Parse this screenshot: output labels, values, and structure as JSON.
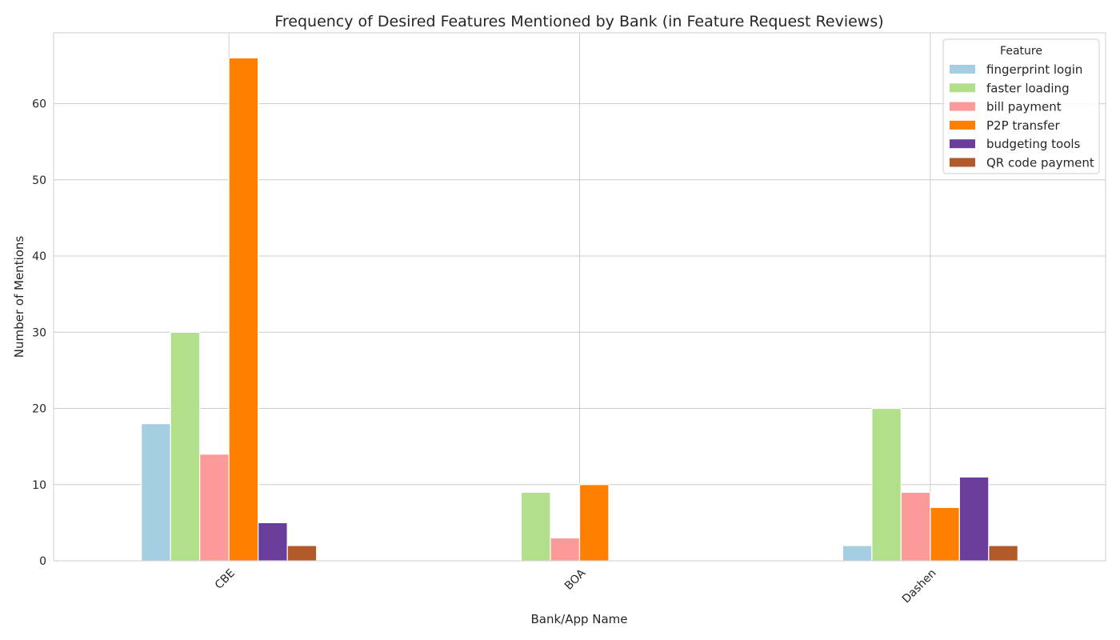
{
  "chart_data": {
    "type": "bar",
    "title": "Frequency of Desired Features Mentioned by Bank (in Feature Request Reviews)",
    "xlabel": "Bank/App Name",
    "ylabel": "Number of Mentions",
    "categories": [
      "CBE",
      "BOA",
      "Dashen"
    ],
    "ylim": [
      0,
      69.3
    ],
    "yticks": [
      0,
      10,
      20,
      30,
      40,
      50,
      60
    ],
    "grid": true,
    "legend": {
      "title": "Feature",
      "placement": "top-right"
    },
    "series": [
      {
        "name": "fingerprint login",
        "color": "#a6cee3",
        "values": [
          18,
          0,
          2
        ]
      },
      {
        "name": "faster loading",
        "color": "#b2df8a",
        "values": [
          30,
          9,
          20
        ]
      },
      {
        "name": "bill payment",
        "color": "#fb9a99",
        "values": [
          14,
          3,
          9
        ]
      },
      {
        "name": "P2P transfer",
        "color": "#ff7f00",
        "values": [
          66,
          10,
          7
        ]
      },
      {
        "name": "budgeting tools",
        "color": "#6a3d9a",
        "values": [
          5,
          0,
          11
        ]
      },
      {
        "name": "QR code payment",
        "color": "#b15928",
        "values": [
          2,
          0,
          2
        ]
      }
    ]
  }
}
